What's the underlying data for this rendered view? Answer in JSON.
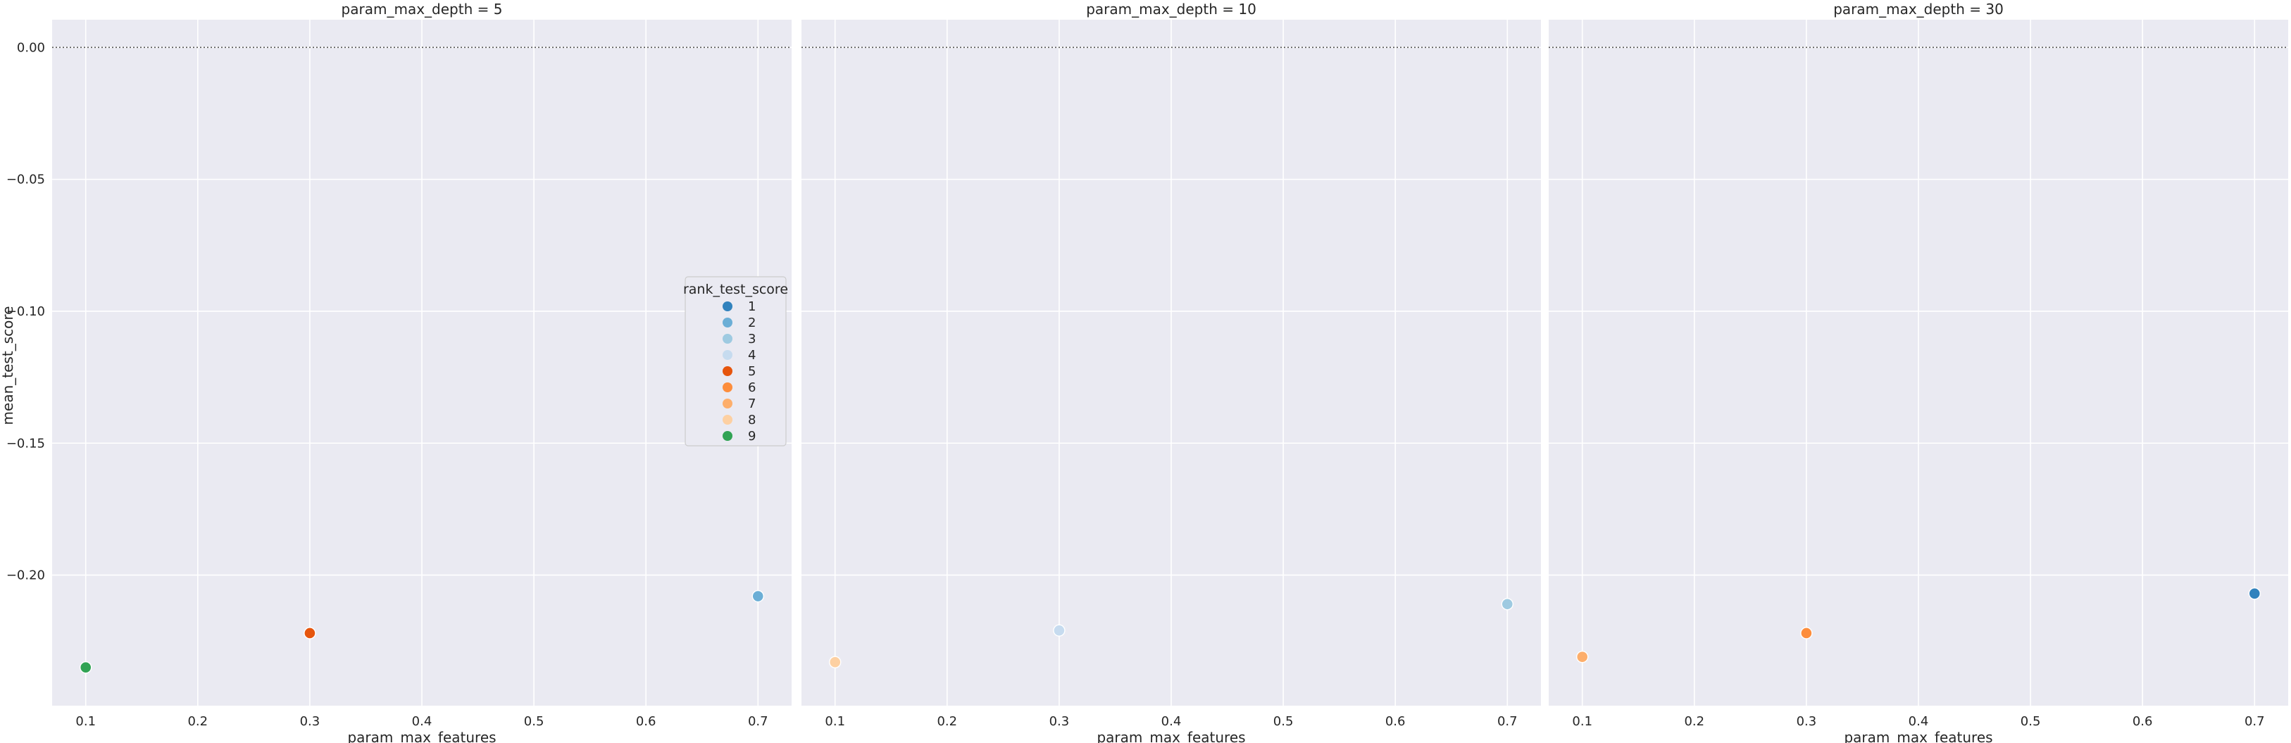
{
  "chart_data": {
    "type": "scatter",
    "xlabel": "param_max_features",
    "ylabel": "mean_test_score",
    "xlim": [
      0.07,
      0.73
    ],
    "ylim": [
      -0.2495,
      0.0105
    ],
    "x_ticks": [
      0.1,
      0.2,
      0.3,
      0.4,
      0.5,
      0.6,
      0.7
    ],
    "x_tick_labels": [
      "0.1",
      "0.2",
      "0.3",
      "0.4",
      "0.5",
      "0.6",
      "0.7"
    ],
    "y_ticks": [
      0.0,
      -0.05,
      -0.1,
      -0.15,
      -0.2
    ],
    "y_tick_labels": [
      "0.00",
      "−0.05",
      "−0.10",
      "−0.15",
      "−0.20"
    ],
    "reference_line": {
      "y": 0.0,
      "style": "dotted",
      "color": "#555555"
    },
    "grid": true,
    "background": "#eaeaf2",
    "panels": [
      {
        "title": "param_max_depth = 5",
        "points": [
          {
            "x": 0.1,
            "y": -0.235,
            "rank": 9
          },
          {
            "x": 0.3,
            "y": -0.222,
            "rank": 5
          },
          {
            "x": 0.7,
            "y": -0.208,
            "rank": 2
          }
        ]
      },
      {
        "title": "param_max_depth = 10",
        "points": [
          {
            "x": 0.1,
            "y": -0.233,
            "rank": 8
          },
          {
            "x": 0.3,
            "y": -0.221,
            "rank": 4
          },
          {
            "x": 0.7,
            "y": -0.211,
            "rank": 3
          }
        ]
      },
      {
        "title": "param_max_depth = 30",
        "points": [
          {
            "x": 0.1,
            "y": -0.231,
            "rank": 7
          },
          {
            "x": 0.3,
            "y": -0.222,
            "rank": 6
          },
          {
            "x": 0.7,
            "y": -0.207,
            "rank": 1
          }
        ]
      }
    ],
    "legend": {
      "title": "rank_test_score",
      "placement": "right",
      "entries": [
        {
          "label": "1",
          "color": "#3182bd"
        },
        {
          "label": "2",
          "color": "#6baed6"
        },
        {
          "label": "3",
          "color": "#9ecae1"
        },
        {
          "label": "4",
          "color": "#c6dbef"
        },
        {
          "label": "5",
          "color": "#e6550d"
        },
        {
          "label": "6",
          "color": "#fd8d3c"
        },
        {
          "label": "7",
          "color": "#fdae6b"
        },
        {
          "label": "8",
          "color": "#fdd0a2"
        },
        {
          "label": "9",
          "color": "#31a354"
        }
      ]
    }
  }
}
